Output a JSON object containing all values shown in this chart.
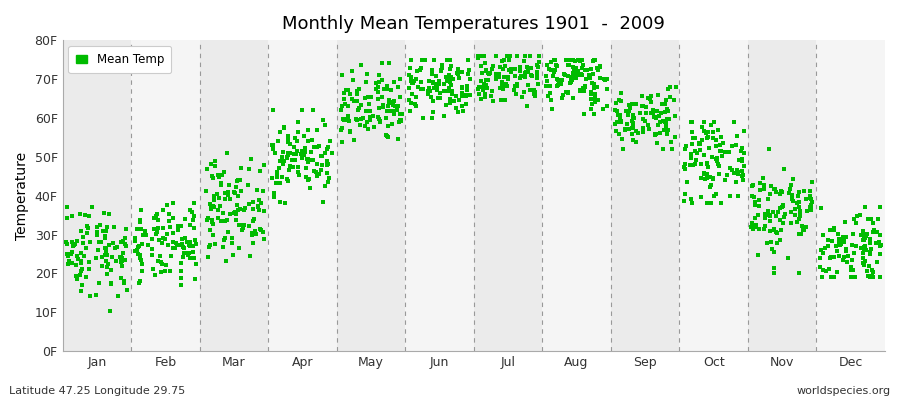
{
  "title": "Monthly Mean Temperatures 1901  -  2009",
  "ylabel": "Temperature",
  "ylim": [
    0,
    80
  ],
  "yticks": [
    0,
    10,
    20,
    30,
    40,
    50,
    60,
    70,
    80
  ],
  "ytick_labels": [
    "0F",
    "10F",
    "20F",
    "30F",
    "40F",
    "50F",
    "60F",
    "70F",
    "80F"
  ],
  "months": [
    "Jan",
    "Feb",
    "Mar",
    "Apr",
    "May",
    "Jun",
    "Jul",
    "Aug",
    "Sep",
    "Oct",
    "Nov",
    "Dec"
  ],
  "month_mean_F": [
    26,
    27,
    37,
    50,
    62,
    68,
    71,
    70,
    60,
    49,
    36,
    27
  ],
  "month_std_F": [
    6,
    5,
    6,
    5,
    5,
    4,
    4,
    4,
    4,
    5,
    6,
    5
  ],
  "month_min_F": [
    9,
    10,
    22,
    38,
    50,
    60,
    62,
    61,
    52,
    38,
    20,
    19
  ],
  "month_max_F": [
    37,
    38,
    51,
    62,
    74,
    75,
    76,
    75,
    68,
    59,
    52,
    37
  ],
  "n_years": 109,
  "dot_color": "#00bb00",
  "dot_size": 6,
  "bg_color_odd": "#ebebeb",
  "bg_color_even": "#f5f5f5",
  "legend_label": "Mean Temp",
  "bottom_left": "Latitude 47.25 Longitude 29.75",
  "bottom_right": "worldspecies.org",
  "seed": 42
}
